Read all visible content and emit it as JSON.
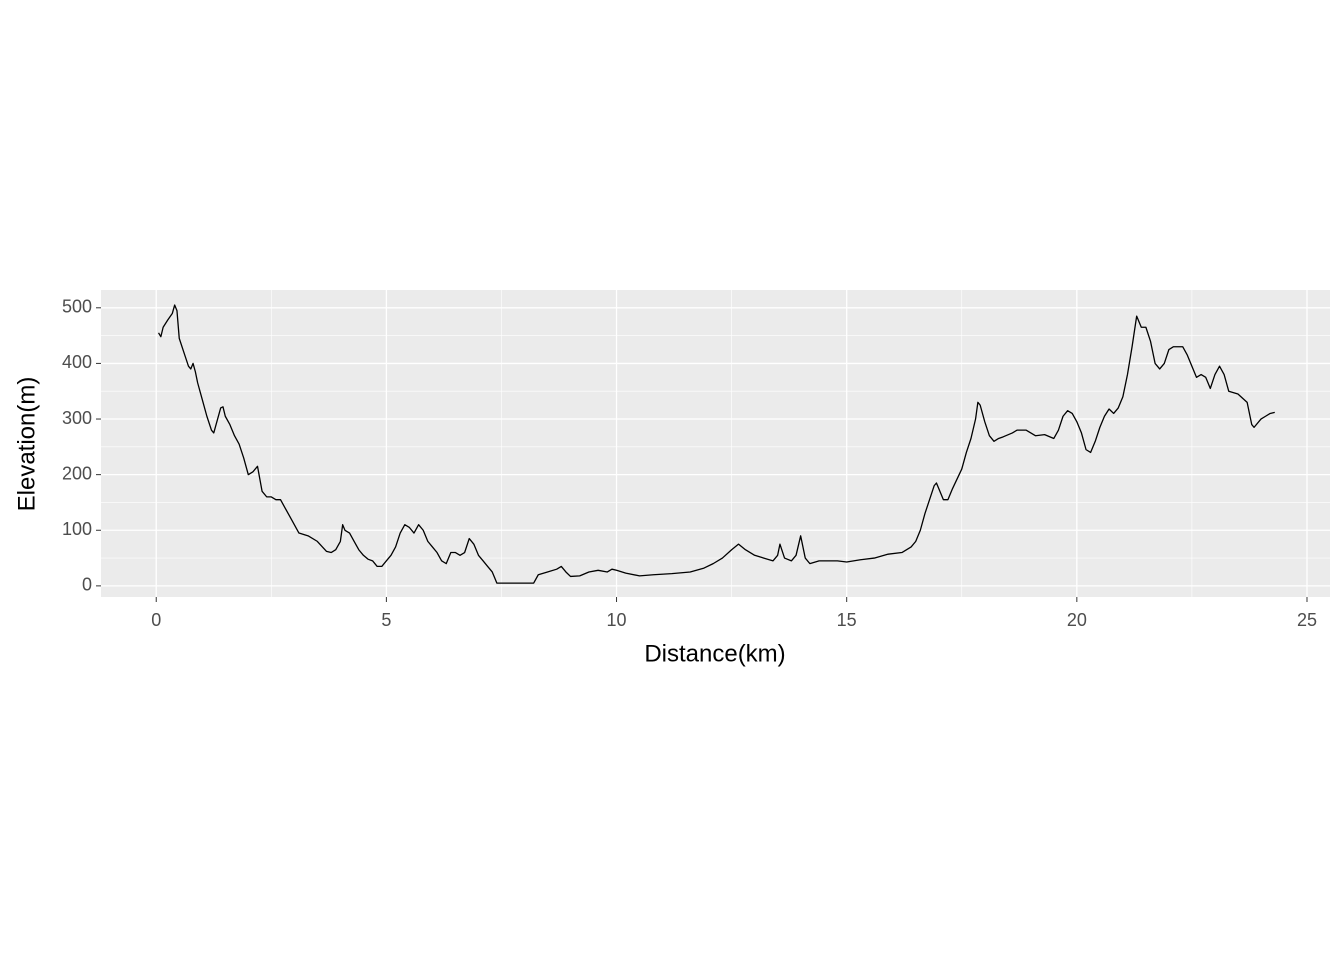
{
  "chart_data": {
    "type": "line",
    "x_label": "Distance(km)",
    "y_label": "Elevation(m)",
    "series": [
      {
        "color": "#000000",
        "x": [
          0.05,
          0.1,
          0.15,
          0.25,
          0.35,
          0.4,
          0.45,
          0.5,
          0.6,
          0.7,
          0.75,
          0.8,
          0.85,
          0.9,
          1.0,
          1.1,
          1.2,
          1.25,
          1.3,
          1.4,
          1.45,
          1.5,
          1.6,
          1.7,
          1.8,
          1.9,
          2.0,
          2.1,
          2.2,
          2.3,
          2.4,
          2.5,
          2.6,
          2.7,
          2.8,
          2.9,
          3.0,
          3.1,
          3.3,
          3.5,
          3.7,
          3.8,
          3.9,
          4.0,
          4.05,
          4.1,
          4.2,
          4.3,
          4.4,
          4.5,
          4.6,
          4.7,
          4.8,
          4.9,
          5.0,
          5.1,
          5.2,
          5.3,
          5.4,
          5.5,
          5.6,
          5.7,
          5.8,
          5.9,
          6.0,
          6.1,
          6.2,
          6.3,
          6.4,
          6.5,
          6.6,
          6.7,
          6.8,
          6.9,
          7.0,
          7.1,
          7.2,
          7.3,
          7.35,
          7.4,
          8.2,
          8.3,
          8.5,
          8.7,
          8.8,
          8.9,
          9.0,
          9.2,
          9.4,
          9.6,
          9.8,
          9.9,
          10.0,
          10.2,
          10.5,
          10.8,
          11.2,
          11.6,
          11.9,
          12.1,
          12.3,
          12.5,
          12.65,
          12.8,
          13.0,
          13.2,
          13.4,
          13.5,
          13.55,
          13.65,
          13.8,
          13.9,
          14.0,
          14.1,
          14.2,
          14.4,
          14.6,
          14.8,
          15.0,
          15.3,
          15.6,
          15.9,
          16.2,
          16.4,
          16.5,
          16.6,
          16.7,
          16.8,
          16.9,
          16.95,
          17.0,
          17.1,
          17.2,
          17.3,
          17.5,
          17.6,
          17.7,
          17.8,
          17.85,
          17.9,
          18.0,
          18.1,
          18.2,
          18.3,
          18.4,
          18.6,
          18.7,
          18.9,
          19.1,
          19.3,
          19.5,
          19.6,
          19.7,
          19.8,
          19.9,
          20.0,
          20.1,
          20.2,
          20.3,
          20.4,
          20.5,
          20.6,
          20.7,
          20.8,
          20.9,
          21.0,
          21.1,
          21.2,
          21.3,
          21.4,
          21.5,
          21.6,
          21.7,
          21.8,
          21.9,
          22.0,
          22.1,
          22.3,
          22.4,
          22.5,
          22.6,
          22.7,
          22.8,
          22.9,
          23.0,
          23.1,
          23.2,
          23.3,
          23.5,
          23.7,
          23.8,
          23.85,
          24.0,
          24.1,
          24.2,
          24.3
        ],
        "values": [
          455,
          448,
          465,
          478,
          490,
          505,
          495,
          445,
          420,
          395,
          390,
          400,
          385,
          365,
          335,
          305,
          280,
          275,
          290,
          320,
          322,
          305,
          290,
          270,
          255,
          230,
          200,
          205,
          215,
          170,
          160,
          160,
          155,
          155,
          140,
          125,
          110,
          95,
          90,
          80,
          62,
          60,
          65,
          80,
          110,
          100,
          95,
          80,
          65,
          55,
          48,
          45,
          35,
          35,
          45,
          55,
          70,
          95,
          110,
          105,
          95,
          110,
          100,
          80,
          70,
          60,
          45,
          40,
          60,
          60,
          55,
          60,
          85,
          75,
          55,
          45,
          35,
          25,
          15,
          5,
          5,
          20,
          25,
          30,
          35,
          25,
          17,
          18,
          25,
          28,
          25,
          30,
          28,
          23,
          18,
          20,
          22,
          25,
          32,
          40,
          50,
          65,
          75,
          65,
          55,
          50,
          45,
          55,
          75,
          50,
          45,
          55,
          90,
          50,
          40,
          45,
          45,
          45,
          43,
          47,
          50,
          57,
          60,
          70,
          80,
          100,
          130,
          155,
          180,
          185,
          175,
          155,
          155,
          175,
          210,
          240,
          265,
          300,
          330,
          325,
          295,
          270,
          260,
          265,
          268,
          275,
          280,
          280,
          270,
          272,
          265,
          280,
          305,
          315,
          310,
          295,
          275,
          245,
          240,
          260,
          285,
          305,
          318,
          310,
          320,
          340,
          380,
          430,
          485,
          465,
          465,
          440,
          400,
          390,
          400,
          425,
          430,
          430,
          415,
          395,
          375,
          380,
          375,
          355,
          380,
          395,
          380,
          350,
          345,
          330,
          290,
          285,
          300,
          305,
          310,
          312
        ]
      }
    ],
    "xlim": [
      -1.2,
      25.5
    ],
    "ylim": [
      -20,
      532
    ],
    "xticks": [
      0,
      5,
      10,
      15,
      20,
      25
    ],
    "yticks": [
      0,
      100,
      200,
      300,
      400,
      500
    ],
    "grid": true,
    "minor_grid": true
  }
}
